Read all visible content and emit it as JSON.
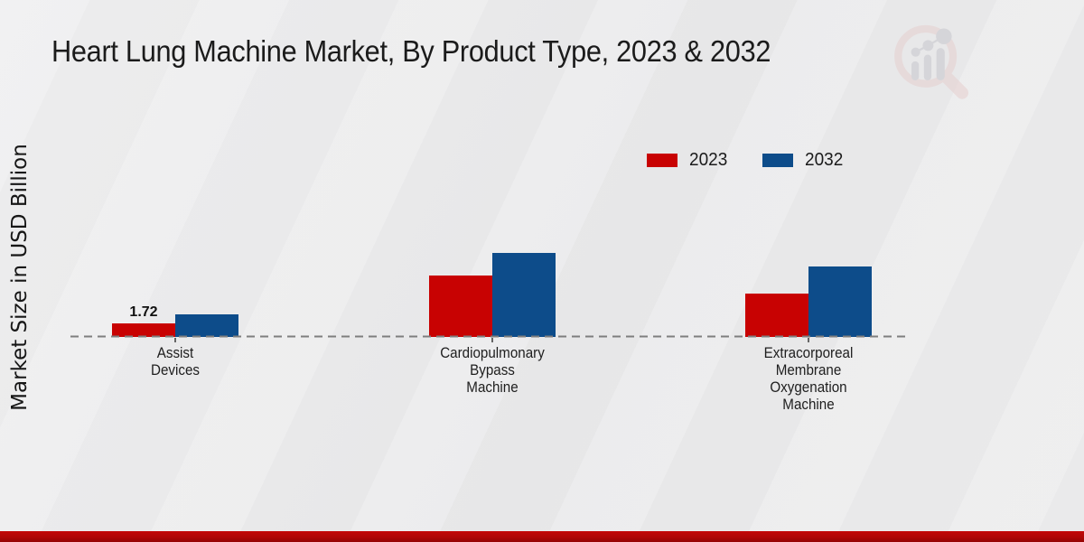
{
  "chart_data": {
    "type": "bar",
    "title": "Heart Lung Machine Market, By Product Type, 2023 & 2032",
    "ylabel": "Market Size in USD Billion",
    "xlabel": "",
    "categories": [
      "Assist\nDevices",
      "Cardiopulmonary\nBypass\nMachine",
      "Extracorporeal\nMembrane\nOxygenation\nMachine"
    ],
    "series": [
      {
        "name": "2023",
        "color": "#c80202",
        "values": [
          1.72,
          7.8,
          5.5
        ]
      },
      {
        "name": "2032",
        "color": "#0d4c8a",
        "values": [
          2.9,
          10.7,
          9.0
        ]
      }
    ],
    "value_labels": [
      {
        "series": 0,
        "category": 0,
        "text": "1.72"
      }
    ],
    "ylim": [
      0,
      12
    ],
    "grid": false,
    "legend_position": "top-right",
    "baseline_style": "dashed",
    "axis_color": "#7e7e7e"
  },
  "footer": {
    "band_color": "#b00606"
  }
}
